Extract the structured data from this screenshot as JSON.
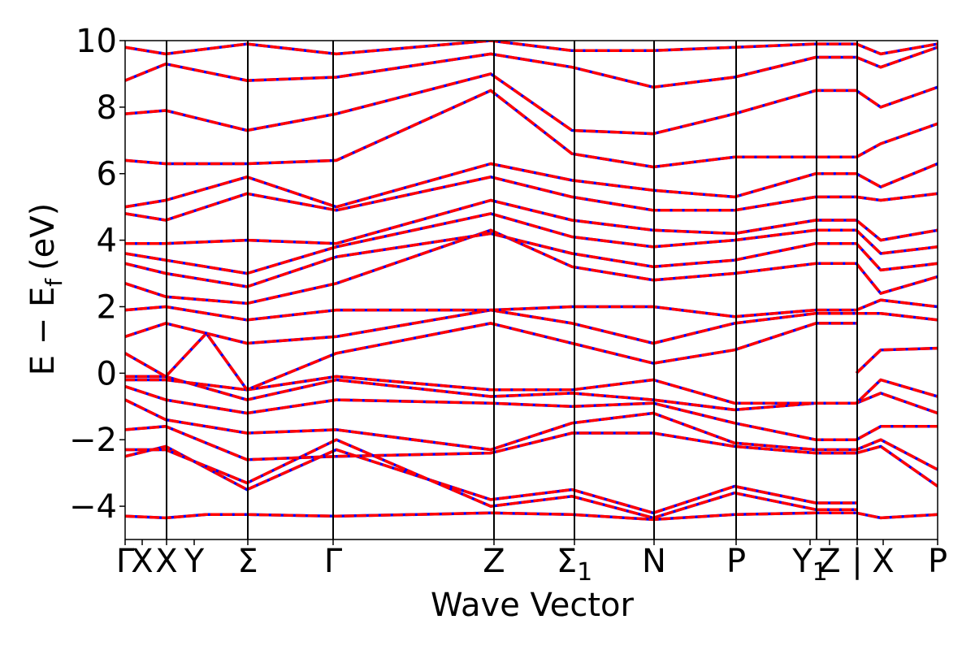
{
  "chart_data": {
    "type": "line",
    "title": "",
    "xlabel": "Wave Vector",
    "ylabel": "E − E",
    "ylabel_sub": "f",
    "ylabel_unit": "(eV)",
    "ylim": [
      -5,
      10
    ],
    "yticks": [
      -4,
      -2,
      0,
      2,
      4,
      6,
      8,
      10
    ],
    "xlim": [
      0,
      1
    ],
    "kpoints": [
      {
        "pos": 0.0,
        "label": "Γ"
      },
      {
        "pos": 0.021,
        "label": "X"
      },
      {
        "pos": 0.051,
        "label": "X"
      },
      {
        "pos": 0.085,
        "label": "Y"
      },
      {
        "pos": 0.151,
        "label": "Σ"
      },
      {
        "pos": 0.256,
        "label": "Γ"
      },
      {
        "pos": 0.454,
        "label": "Z"
      },
      {
        "pos": 0.553,
        "label": "Σ",
        "sub": "1"
      },
      {
        "pos": 0.651,
        "label": "N"
      },
      {
        "pos": 0.752,
        "label": "P"
      },
      {
        "pos": 0.843,
        "label": "Y",
        "sub": "1"
      },
      {
        "pos": 0.867,
        "label": "Z"
      },
      {
        "pos": 0.901,
        "label": "|"
      },
      {
        "pos": 0.933,
        "label": "X"
      },
      {
        "pos": 1.0,
        "label": "P"
      }
    ],
    "vlines": [
      0.051,
      0.151,
      0.256,
      0.454,
      0.553,
      0.651,
      0.752,
      0.851,
      0.901
    ],
    "series": [
      {
        "color": "#0000ff",
        "dash": false
      },
      {
        "color": "#ff0000",
        "dash": true
      }
    ],
    "bands": [
      {
        "x": [
          0,
          0.05,
          0.1,
          0.15,
          0.26,
          0.45,
          0.55,
          0.65,
          0.75,
          0.85,
          0.9,
          0.93,
          1.0
        ],
        "y": [
          -4.3,
          -4.35,
          -4.25,
          -4.25,
          -4.3,
          -4.2,
          -4.25,
          -4.4,
          -4.25,
          -4.2,
          -4.2,
          -4.35,
          -4.25
        ]
      },
      {
        "x": [
          0,
          0.05,
          0.15,
          0.26,
          0.45,
          0.55,
          0.65,
          0.75,
          0.85,
          0.9
        ],
        "y": [
          -2.5,
          -2.2,
          -3.5,
          -2.3,
          -3.8,
          -3.5,
          -4.2,
          -3.4,
          -3.9,
          -3.9
        ]
      },
      {
        "x": [
          0,
          0.05,
          0.15,
          0.26,
          0.45,
          0.55,
          0.65,
          0.75,
          0.85,
          0.9
        ],
        "y": [
          -2.3,
          -2.3,
          -3.3,
          -2.0,
          -4.0,
          -3.7,
          -4.35,
          -3.6,
          -4.1,
          -4.1
        ]
      },
      {
        "x": [
          0,
          0.05,
          0.15,
          0.26,
          0.45,
          0.55,
          0.65,
          0.75,
          0.85,
          0.9,
          0.93,
          1.0
        ],
        "y": [
          -1.7,
          -1.6,
          -2.6,
          -2.5,
          -2.4,
          -1.8,
          -1.8,
          -2.2,
          -2.4,
          -2.4,
          -2.2,
          -3.4
        ]
      },
      {
        "x": [
          0,
          0.05,
          0.15,
          0.26,
          0.45,
          0.55,
          0.65,
          0.75,
          0.85,
          0.9,
          0.93,
          1.0
        ],
        "y": [
          -0.8,
          -1.4,
          -1.8,
          -1.7,
          -2.3,
          -1.5,
          -1.2,
          -2.1,
          -2.3,
          -2.3,
          -2.0,
          -2.9
        ]
      },
      {
        "x": [
          0,
          0.05,
          0.15,
          0.26,
          0.45,
          0.55,
          0.65,
          0.75,
          0.85,
          0.9,
          0.93,
          1.0
        ],
        "y": [
          -0.4,
          -0.8,
          -1.2,
          -0.8,
          -0.9,
          -1.0,
          -0.9,
          -1.5,
          -2.0,
          -2.0,
          -1.6,
          -1.6
        ]
      },
      {
        "x": [
          0,
          0.05,
          0.15,
          0.26,
          0.45,
          0.55,
          0.65,
          0.75,
          0.85,
          0.9,
          0.93,
          1.0
        ],
        "y": [
          -0.1,
          -0.1,
          -0.8,
          -0.2,
          -0.7,
          -0.6,
          -0.8,
          -1.1,
          -0.9,
          -0.9,
          -0.6,
          -1.2
        ]
      },
      {
        "x": [
          0,
          0.05,
          0.15,
          0.26,
          0.45,
          0.55,
          0.65,
          0.75,
          0.85,
          0.9,
          0.93,
          1.0
        ],
        "y": [
          -0.2,
          -0.2,
          -0.5,
          -0.1,
          -0.5,
          -0.5,
          -0.2,
          -0.9,
          -0.9,
          -0.9,
          -0.2,
          -0.7
        ]
      },
      {
        "x": [
          0,
          0.05,
          0.1,
          0.15,
          0.26,
          0.45,
          0.55,
          0.65,
          0.75,
          0.85,
          0.9
        ],
        "y": [
          0.6,
          -0.1,
          1.2,
          -0.5,
          0.6,
          1.5,
          0.9,
          0.3,
          0.7,
          1.5,
          1.5
        ]
      },
      {
        "x": [
          0.9,
          0.93,
          1.0
        ],
        "y": [
          0.0,
          0.7,
          0.75
        ]
      },
      {
        "x": [
          0,
          0.05,
          0.1,
          0.15,
          0.26,
          0.45,
          0.55,
          0.65,
          0.75,
          0.85,
          0.9,
          0.93,
          1.0
        ],
        "y": [
          1.1,
          1.5,
          1.2,
          0.9,
          1.1,
          1.9,
          1.5,
          0.9,
          1.5,
          1.8,
          1.8,
          1.8,
          1.6
        ]
      },
      {
        "x": [
          0,
          0.05,
          0.15,
          0.26,
          0.45,
          0.55,
          0.65,
          0.75,
          0.85,
          0.9,
          0.93,
          1.0
        ],
        "y": [
          1.9,
          2.0,
          1.6,
          1.9,
          1.9,
          2.0,
          2.0,
          1.7,
          1.9,
          1.9,
          2.2,
          2.0
        ]
      },
      {
        "x": [
          0,
          0.05,
          0.15,
          0.26,
          0.45,
          0.55,
          0.65,
          0.75,
          0.85,
          0.9,
          0.93,
          1.0
        ],
        "y": [
          2.7,
          2.3,
          2.1,
          2.7,
          4.3,
          3.2,
          2.8,
          3.0,
          3.3,
          3.3,
          2.4,
          2.9
        ]
      },
      {
        "x": [
          0,
          0.05,
          0.15,
          0.26,
          0.45,
          0.55,
          0.65,
          0.75,
          0.85,
          0.9,
          0.93,
          1.0
        ],
        "y": [
          3.3,
          3.0,
          2.6,
          3.5,
          4.2,
          3.6,
          3.2,
          3.4,
          3.9,
          3.9,
          3.1,
          3.3
        ]
      },
      {
        "x": [
          0,
          0.05,
          0.15,
          0.26,
          0.45,
          0.55,
          0.65,
          0.75,
          0.85,
          0.9,
          0.93,
          1.0
        ],
        "y": [
          3.6,
          3.4,
          3.0,
          3.8,
          4.8,
          4.1,
          3.8,
          4.0,
          4.3,
          4.3,
          3.6,
          3.8
        ]
      },
      {
        "x": [
          0,
          0.05,
          0.15,
          0.26,
          0.45,
          0.55,
          0.65,
          0.75,
          0.85,
          0.9,
          0.93,
          1.0
        ],
        "y": [
          3.9,
          3.9,
          4.0,
          3.9,
          5.2,
          4.6,
          4.3,
          4.2,
          4.6,
          4.6,
          4.0,
          4.3
        ]
      },
      {
        "x": [
          0,
          0.05,
          0.15,
          0.26,
          0.45,
          0.55,
          0.65,
          0.75,
          0.85,
          0.9,
          0.93,
          1.0
        ],
        "y": [
          4.8,
          4.6,
          5.4,
          4.9,
          5.9,
          5.3,
          4.9,
          4.9,
          5.3,
          5.3,
          5.2,
          5.4
        ]
      },
      {
        "x": [
          0,
          0.05,
          0.15,
          0.26,
          0.45,
          0.55,
          0.65,
          0.75,
          0.85,
          0.9,
          0.93,
          1.0
        ],
        "y": [
          5.0,
          5.2,
          5.9,
          5.0,
          6.3,
          5.8,
          5.5,
          5.3,
          6.0,
          6.0,
          5.6,
          6.3
        ]
      },
      {
        "x": [
          0,
          0.05,
          0.15,
          0.26,
          0.45,
          0.55,
          0.65,
          0.75,
          0.85,
          0.9,
          0.93,
          1.0
        ],
        "y": [
          6.4,
          6.3,
          6.3,
          6.4,
          8.5,
          6.6,
          6.2,
          6.5,
          6.5,
          6.5,
          6.9,
          7.5
        ]
      },
      {
        "x": [
          0,
          0.05,
          0.15,
          0.26,
          0.45,
          0.55,
          0.65,
          0.75,
          0.85,
          0.9,
          0.93,
          1.0
        ],
        "y": [
          7.8,
          7.9,
          7.3,
          7.8,
          9.0,
          7.3,
          7.2,
          7.8,
          8.5,
          8.5,
          8.0,
          8.6
        ]
      },
      {
        "x": [
          0,
          0.05,
          0.15,
          0.26,
          0.45,
          0.55,
          0.65,
          0.75,
          0.85,
          0.9,
          0.93,
          1.0
        ],
        "y": [
          8.8,
          9.3,
          8.8,
          8.9,
          9.6,
          9.2,
          8.6,
          8.9,
          9.5,
          9.5,
          9.2,
          9.8
        ]
      },
      {
        "x": [
          0,
          0.05,
          0.15,
          0.26,
          0.45,
          0.55,
          0.65,
          0.75,
          0.85,
          0.9,
          0.93,
          1.0
        ],
        "y": [
          9.8,
          9.6,
          9.9,
          9.6,
          10.0,
          9.7,
          9.7,
          9.8,
          9.9,
          9.9,
          9.6,
          9.9
        ]
      }
    ]
  }
}
